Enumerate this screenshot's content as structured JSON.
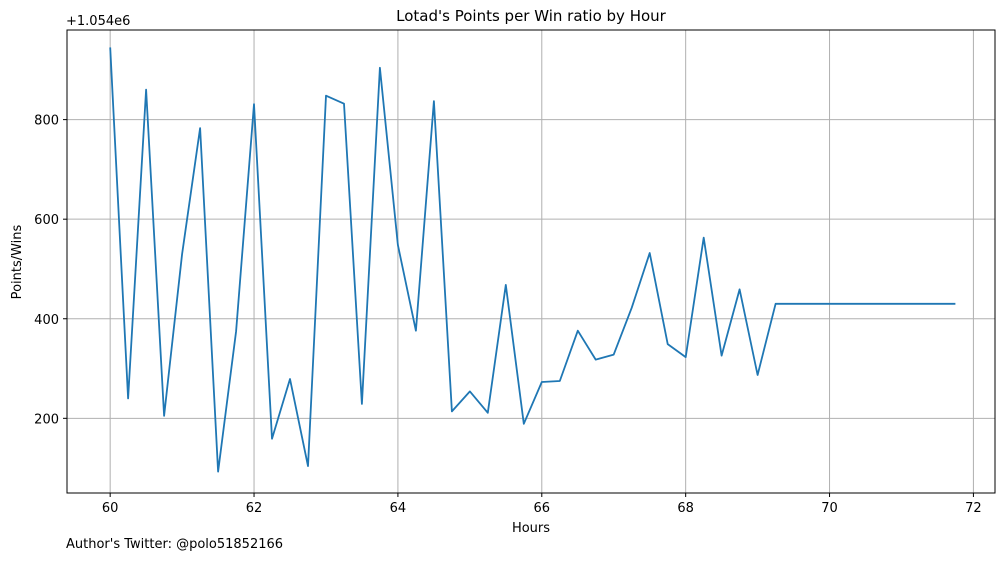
{
  "chart_data": {
    "type": "line",
    "title": "Lotad's Points per Win ratio by Hour",
    "xlabel": "Hours",
    "ylabel": "Points/Wins",
    "offset_label": "+1.054e6",
    "xlim": [
      59.4,
      72.3
    ],
    "ylim": [
      50,
      980
    ],
    "xticks": [
      60,
      62,
      64,
      66,
      68,
      70,
      72
    ],
    "yticks": [
      200,
      400,
      600,
      800
    ],
    "grid": true,
    "series_color": "#1f77b4",
    "series": [
      {
        "x": [
          60,
          60.25,
          60.5,
          60.75,
          61,
          61.25,
          61.5,
          61.75,
          62,
          62.25,
          62.5,
          62.75,
          63,
          63.25,
          63.5,
          63.75,
          64,
          64.25,
          64.5,
          64.75,
          65,
          65.25,
          65.5,
          65.75,
          66,
          66.25,
          66.5,
          66.75,
          67,
          67.25,
          67.5,
          67.75,
          68,
          68.25,
          68.5,
          68.75,
          69,
          69.25,
          69.5,
          69.75,
          70,
          70.25,
          70.5,
          70.75,
          71,
          71.25,
          71.5,
          71.75
        ],
        "values": [
          945,
          240,
          860,
          205,
          530,
          783,
          93,
          375,
          831,
          159,
          279,
          104,
          848,
          832,
          229,
          904,
          548,
          376,
          837,
          214,
          254,
          211,
          468,
          189,
          273,
          275,
          376,
          318,
          328,
          422,
          532,
          349,
          323,
          563,
          326,
          459,
          287,
          430,
          430,
          430,
          430,
          430,
          430,
          430,
          430,
          430,
          430,
          430
        ]
      }
    ]
  },
  "footer": {
    "text": "Author's Twitter: @polo51852166"
  }
}
